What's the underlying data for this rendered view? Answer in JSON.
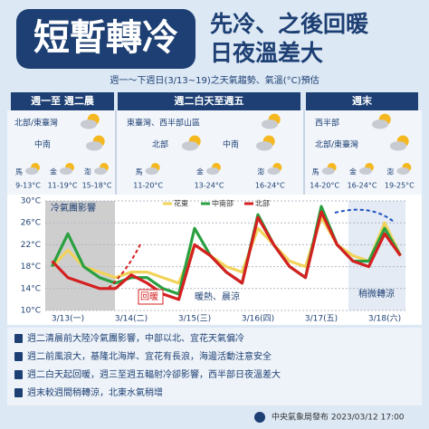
{
  "header": {
    "title": "短暫轉冷",
    "subtitle": [
      "先冷、之後回暖",
      "日夜溫差大"
    ]
  },
  "period": "週一～下週日(3/13~19)之天氣趨勢、氣溫(°C)預估",
  "columns": [
    {
      "heading": "週一至 週二晨",
      "regions": [
        "北部/東臺灣",
        "中南"
      ],
      "temps": [
        {
          "island": "馬",
          "range": "9-13°C"
        },
        {
          "island": "金",
          "range": "11-19°C"
        },
        {
          "island": "澎",
          "range": "15-18°C"
        }
      ]
    },
    {
      "heading": "週二白天至週五",
      "regions": [
        "東臺灣、西半部山區",
        "北部",
        "中南"
      ],
      "temps": [
        {
          "island": "馬",
          "range": "11-20°C"
        },
        {
          "island": "金",
          "range": "13-24°C"
        },
        {
          "island": "澎",
          "range": "16-24°C"
        }
      ]
    },
    {
      "heading": "週末",
      "regions": [
        "西半部",
        "北部/東臺灣"
      ],
      "temps": [
        {
          "island": "馬",
          "range": "14-20°C"
        },
        {
          "island": "金",
          "range": "16-24°C"
        },
        {
          "island": "澎",
          "range": "19-25°C"
        }
      ]
    }
  ],
  "chart_data": {
    "type": "line",
    "categories": [
      null,
      "3/13(一)",
      null,
      null,
      null,
      "3/14(二)",
      null,
      null,
      null,
      "3/15(三)",
      null,
      null,
      null,
      "3/16(四)",
      null,
      null,
      null,
      "3/17(五)",
      null,
      null,
      null,
      "3/18(六)",
      null
    ],
    "series": [
      {
        "name": "花東",
        "color": "#f2d35a",
        "values": [
          18,
          21,
          18,
          17,
          16,
          17,
          17,
          16,
          15,
          22,
          20,
          18,
          17,
          25,
          22,
          19,
          18,
          27,
          22,
          20,
          19,
          26,
          20
        ]
      },
      {
        "name": "中南部",
        "color": "#2aa040",
        "values": [
          18,
          24,
          18,
          16,
          15,
          16,
          16,
          14,
          13,
          25,
          20,
          17,
          15,
          27.5,
          22,
          18,
          16,
          29,
          22,
          19,
          19,
          25,
          20
        ]
      },
      {
        "name": "北部",
        "color": "#d42020",
        "values": [
          19,
          16,
          15,
          14,
          14,
          16.5,
          15,
          13,
          12,
          22,
          20,
          17,
          15,
          27,
          22,
          18,
          16,
          28,
          22,
          19,
          18,
          24,
          20
        ]
      }
    ],
    "ylim": [
      10,
      30
    ],
    "yticks": [
      {
        "value": 10,
        "label": "10°C"
      },
      {
        "value": 14,
        "label": "14°C"
      },
      {
        "value": 18,
        "label": "18°C"
      },
      {
        "value": 22,
        "label": "22°C"
      },
      {
        "value": 26,
        "label": "26°C"
      },
      {
        "value": 30,
        "label": "30°C"
      }
    ],
    "annotations": [
      "冷氣團影響",
      "回暖",
      "暖熱、晨涼",
      "稍微轉涼"
    ]
  },
  "notes": [
    "週二清晨前大陸冷氣團影響，中部以北、宜花天氣偏冷",
    "週二前風浪大，基隆北海岸、宜花有長浪，海邊活動注意安全",
    "週二白天起回暖，週三至週五輻射冷卻影響，西半部日夜溫差大",
    "週末較週間稍轉涼，北東水氣稍增"
  ],
  "footer": "中央氣象局發布 2023/03/12 17:00"
}
